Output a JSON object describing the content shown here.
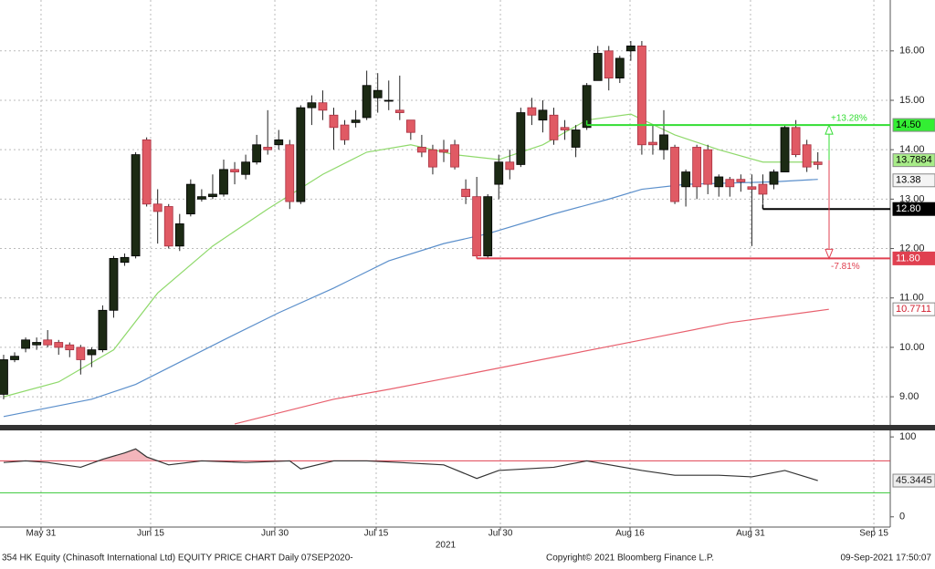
{
  "chart_data": {
    "type": "candlestick",
    "footer_left": "354 HK Equity (Chinasoft International Ltd) EQUITY PRICE CHART  Daily 07SEP2020-",
    "footer_center": "Copyright© 2021 Bloomberg Finance L.P.",
    "footer_right": "09-Sep-2021 17:50:07",
    "year_label": "2021",
    "up_color": "#1c2a14",
    "down_color": "#e05a64",
    "x": [
      0,
      1,
      2,
      3,
      4,
      5,
      6,
      7,
      8,
      9,
      10,
      11,
      12,
      13,
      14,
      15,
      16,
      17,
      18,
      19,
      20,
      21,
      22,
      23,
      24,
      25,
      26,
      27,
      28,
      29,
      30,
      31,
      32,
      33,
      34,
      35,
      36,
      37,
      38,
      39,
      40,
      41,
      42,
      43,
      44,
      45,
      46,
      47,
      48,
      49,
      50,
      51,
      52,
      53,
      54,
      55,
      56,
      57,
      58,
      59,
      60,
      61,
      62,
      63,
      64,
      65,
      66,
      67,
      68,
      69,
      70,
      71,
      72,
      73,
      74
    ],
    "open": [
      9.05,
      9.75,
      9.98,
      10.05,
      10.15,
      10.1,
      10.05,
      10.0,
      9.85,
      9.95,
      10.75,
      11.72,
      11.85,
      14.2,
      12.9,
      12.85,
      12.05,
      12.7,
      13.0,
      13.05,
      13.1,
      13.6,
      13.5,
      13.75,
      14.05,
      14.1,
      14.1,
      12.95,
      14.85,
      14.95,
      14.7,
      14.5,
      14.55,
      14.65,
      15.05,
      15.0,
      14.8,
      14.6,
      14.05,
      14.0,
      14.0,
      14.1,
      13.2,
      13.05,
      11.85,
      13.3,
      13.75,
      13.7,
      14.85,
      14.6,
      14.7,
      14.45,
      14.05,
      14.45,
      15.4,
      16.0,
      15.45,
      16.0,
      16.1,
      14.15,
      14.0,
      14.05,
      13.25,
      14.05,
      14.0,
      13.25,
      13.4,
      13.4,
      13.25,
      13.3,
      13.3,
      13.55,
      14.45,
      14.1,
      13.75
    ],
    "high": [
      9.85,
      9.9,
      10.2,
      10.2,
      10.35,
      10.15,
      10.1,
      10.05,
      10.0,
      10.85,
      11.85,
      11.9,
      13.95,
      14.25,
      13.2,
      12.9,
      12.7,
      13.4,
      13.2,
      13.5,
      13.8,
      13.75,
      13.9,
      14.3,
      14.8,
      14.4,
      14.2,
      14.9,
      15.1,
      15.2,
      14.85,
      14.6,
      14.8,
      15.6,
      15.55,
      15.4,
      15.5,
      14.6,
      14.3,
      14.1,
      14.2,
      14.2,
      13.4,
      13.45,
      13.1,
      13.9,
      14.0,
      14.85,
      15.05,
      15.0,
      14.85,
      14.6,
      14.5,
      15.35,
      16.1,
      16.1,
      15.9,
      16.2,
      16.2,
      14.5,
      14.8,
      14.1,
      13.6,
      14.1,
      14.1,
      13.5,
      13.45,
      13.5,
      13.5,
      13.5,
      13.6,
      14.5,
      14.6,
      14.2,
      13.95
    ],
    "low": [
      8.95,
      9.7,
      9.9,
      9.95,
      10.0,
      9.85,
      9.8,
      9.45,
      9.6,
      9.9,
      10.6,
      11.65,
      11.8,
      12.85,
      12.1,
      12.0,
      11.95,
      12.65,
      12.95,
      13.0,
      13.05,
      13.3,
      13.4,
      13.7,
      13.9,
      14.0,
      12.8,
      12.9,
      14.5,
      14.6,
      14.0,
      14.1,
      14.45,
      14.6,
      14.75,
      14.8,
      14.6,
      14.2,
      13.85,
      13.5,
      13.75,
      13.6,
      12.9,
      11.8,
      11.8,
      13.0,
      13.4,
      13.65,
      14.5,
      14.35,
      14.1,
      14.2,
      13.85,
      14.4,
      15.4,
      15.2,
      15.35,
      15.8,
      13.9,
      13.9,
      13.8,
      12.9,
      12.85,
      13.0,
      13.1,
      13.05,
      13.05,
      13.15,
      12.05,
      12.9,
      13.2,
      13.55,
      13.85,
      13.55,
      13.6
    ],
    "close": [
      9.75,
      9.82,
      10.15,
      10.1,
      10.05,
      10.0,
      9.95,
      9.75,
      9.95,
      10.75,
      11.8,
      11.82,
      13.9,
      12.9,
      12.75,
      12.05,
      12.5,
      13.3,
      13.05,
      13.1,
      13.6,
      13.55,
      13.75,
      14.1,
      14.0,
      14.2,
      12.95,
      14.85,
      14.95,
      14.8,
      14.45,
      14.2,
      14.6,
      15.3,
      15.2,
      15.0,
      14.75,
      14.35,
      13.95,
      13.65,
      13.95,
      13.65,
      13.05,
      11.85,
      13.05,
      13.75,
      13.6,
      14.75,
      14.7,
      14.8,
      14.2,
      14.4,
      14.4,
      15.3,
      15.95,
      15.45,
      15.85,
      16.1,
      14.1,
      14.1,
      14.3,
      12.95,
      13.55,
      13.25,
      13.3,
      13.45,
      13.25,
      13.35,
      13.2,
      13.1,
      13.55,
      14.45,
      13.9,
      13.65,
      13.7
    ],
    "series": [
      {
        "color": "#8fd96b",
        "x": [
          0,
          5,
          10,
          14,
          19,
          24,
          29,
          33,
          37,
          41,
          45,
          49,
          53,
          57,
          61,
          65,
          69,
          74
        ],
        "values": [
          9.0,
          9.3,
          9.95,
          11.1,
          12.05,
          12.8,
          13.5,
          13.95,
          14.1,
          13.9,
          13.8,
          14.1,
          14.6,
          14.72,
          14.3,
          14.0,
          13.75,
          13.75
        ]
      },
      {
        "color": "#5b8fcb",
        "x": [
          0,
          8,
          12,
          16,
          20,
          25,
          30,
          35,
          40,
          44,
          50,
          55,
          58,
          62,
          70,
          74
        ],
        "values": [
          8.6,
          8.95,
          9.25,
          9.7,
          10.15,
          10.7,
          11.2,
          11.75,
          12.1,
          12.3,
          12.7,
          13.0,
          13.2,
          13.3,
          13.35,
          13.4
        ]
      },
      {
        "color": "#e8606e",
        "x": [
          21,
          30,
          35,
          42,
          50,
          58,
          66,
          75
        ],
        "values": [
          8.45,
          8.95,
          9.15,
          9.45,
          9.8,
          10.15,
          10.5,
          10.77
        ]
      }
    ],
    "levels": [
      {
        "value": 14.5,
        "x": 53,
        "color": "#33dd33",
        "annotation": "+13.28%"
      },
      {
        "value": 12.8,
        "x": 69,
        "color": "#000000"
      },
      {
        "value": 11.8,
        "x": 43,
        "color": "#e04050",
        "annotation": "-7.81%"
      }
    ],
    "callouts": [
      {
        "label": "14.50",
        "value": 14.5,
        "bg": "#33ee33",
        "fg": "#000000"
      },
      {
        "label": "13.7884",
        "value": 13.7884,
        "bg": "#a8ec88",
        "fg": "#000000"
      },
      {
        "label": "13.38",
        "value": 13.38,
        "bg": "#f4f4f4",
        "fg": "#000000"
      },
      {
        "label": "12.80",
        "value": 12.8,
        "bg": "#000000",
        "fg": "#ffffff"
      },
      {
        "label": "11.80",
        "value": 11.8,
        "bg": "#e04050",
        "fg": "#ffffff"
      },
      {
        "label": "10.7711",
        "value": 10.7711,
        "bg": "#ffffff",
        "fg": "#d02030"
      }
    ],
    "xlim": [
      -0.33,
      80.58
    ],
    "xticks": [
      {
        "value": 3.4,
        "label": "May 31"
      },
      {
        "value": 13.36,
        "label": "Jun 15"
      },
      {
        "value": 24.65,
        "label": "Jun 30"
      },
      {
        "value": 33.86,
        "label": "Jul 15"
      },
      {
        "value": 45.15,
        "label": "Jul 30"
      },
      {
        "value": 56.93,
        "label": "Aug 16"
      },
      {
        "value": 67.88,
        "label": "Aug 31"
      },
      {
        "value": 79.09,
        "label": "Sep 15"
      }
    ],
    "ylim": [
      8.43,
      17.03
    ],
    "yticks": [
      {
        "value": 9,
        "label": "9.00"
      },
      {
        "value": 10,
        "label": "10.00"
      },
      {
        "value": 11,
        "label": "11.00"
      },
      {
        "value": 12,
        "label": "12.00"
      },
      {
        "value": 13,
        "label": "13.00"
      },
      {
        "value": 14,
        "label": "14.00"
      },
      {
        "value": 15,
        "label": "15.00"
      },
      {
        "value": 16,
        "label": "16.00"
      }
    ],
    "grid": true,
    "rsi": {
      "color": "#333333",
      "x": [
        0,
        2,
        4,
        7,
        9,
        11,
        12,
        13,
        15,
        18,
        22,
        26,
        27,
        30,
        33,
        36,
        40,
        43,
        45,
        50,
        53,
        58,
        61,
        65,
        68,
        71,
        74
      ],
      "values": [
        68,
        70,
        68,
        62,
        72,
        80,
        85,
        75,
        65,
        70,
        68,
        70,
        60,
        70,
        70,
        68,
        65,
        48,
        58,
        62,
        70,
        58,
        52,
        52,
        50,
        58,
        45.3445
      ],
      "ylim": [
        -12.8,
        107
      ],
      "yticks": [
        0,
        100
      ],
      "bands": [
        {
          "value": 70,
          "color": "#e04050"
        },
        {
          "value": 30,
          "color": "#44cc44"
        }
      ],
      "last_label": "45.3445",
      "last_value": 45.3445
    }
  }
}
